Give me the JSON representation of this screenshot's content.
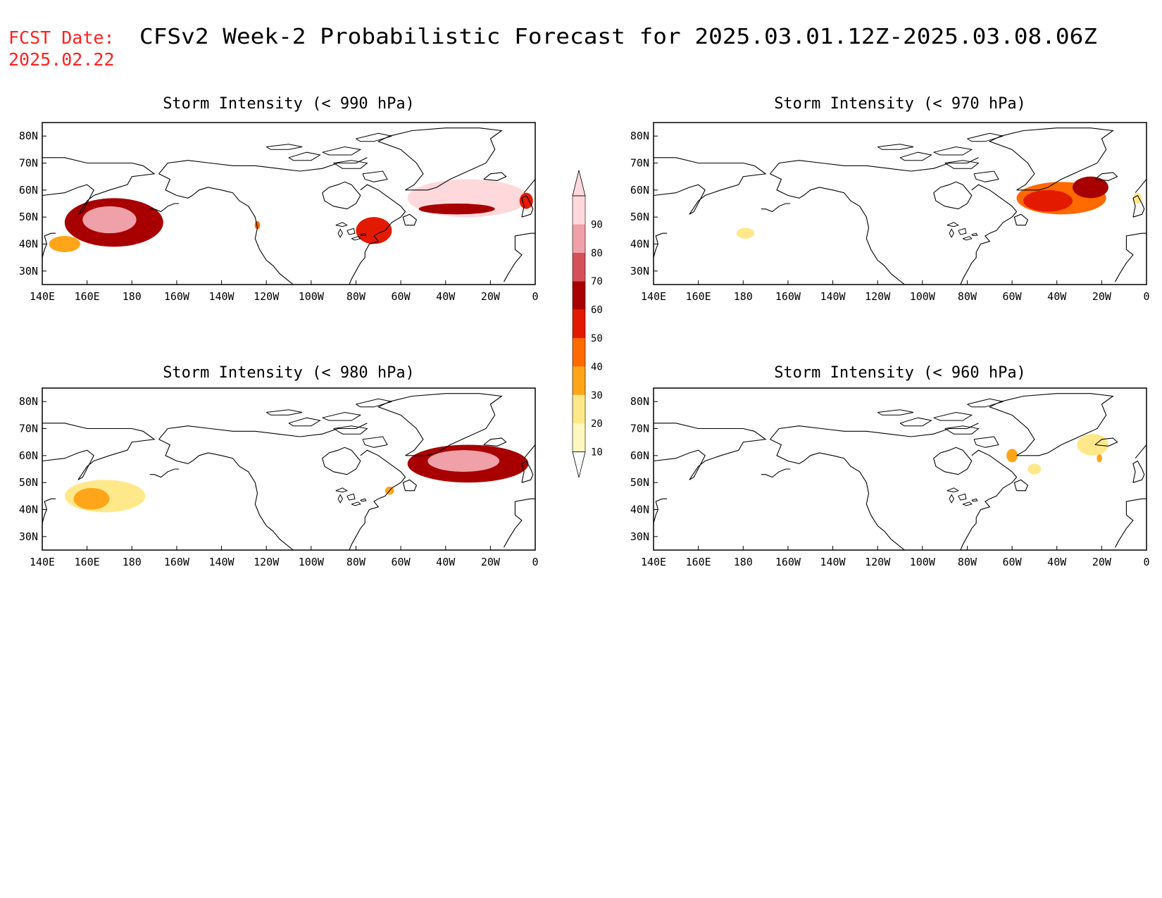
{
  "header": {
    "fcst_label": "FCST Date:",
    "fcst_date": "2025.02.22",
    "title": "CFSv2 Week-2 Probabilistic Forecast for 2025.03.01.12Z-2025.03.08.06Z",
    "date_color": "#ff2020"
  },
  "lon_ticks": [
    "140E",
    "160E",
    "180",
    "160W",
    "140W",
    "120W",
    "100W",
    "80W",
    "60W",
    "40W",
    "20W",
    "0"
  ],
  "lat_ticks": [
    "30N",
    "40N",
    "50N",
    "60N",
    "70N",
    "80N"
  ],
  "colorbar": {
    "levels": [
      "10",
      "20",
      "30",
      "40",
      "50",
      "60",
      "70",
      "80",
      "90"
    ],
    "colors": [
      "#fff7c0",
      "#ffe88a",
      "#ffa51a",
      "#ff6a00",
      "#e41a00",
      "#a80000",
      "#d6505a",
      "#f0a0a8",
      "#ffd8dc"
    ]
  },
  "panels": [
    {
      "title": "Storm Intensity (< 990 hPa)",
      "blobs": [
        {
          "lon": 172,
          "lat": 48,
          "rx": 22,
          "ry": 9,
          "level": 5
        },
        {
          "lon": 170,
          "lat": 49,
          "rx": 12,
          "ry": 5,
          "level": 7
        },
        {
          "lon": 150,
          "lat": 40,
          "rx": 7,
          "ry": 3,
          "level": 2
        },
        {
          "lon": 236,
          "lat": 47,
          "rx": 1.2,
          "ry": 1.5,
          "level": 3
        },
        {
          "lon": 288,
          "lat": 45,
          "rx": 8,
          "ry": 5,
          "level": 4
        },
        {
          "lon": 330,
          "lat": 57,
          "rx": 27,
          "ry": 7,
          "level": 8
        },
        {
          "lon": 325,
          "lat": 53,
          "rx": 17,
          "ry": 2,
          "level": 5
        },
        {
          "lon": 356,
          "lat": 56,
          "rx": 3,
          "ry": 3,
          "level": 4
        }
      ]
    },
    {
      "title": "Storm Intensity (< 970 hPa)",
      "blobs": [
        {
          "lon": 181,
          "lat": 44,
          "rx": 4,
          "ry": 2,
          "level": 1
        },
        {
          "lon": 322,
          "lat": 57,
          "rx": 20,
          "ry": 6,
          "level": 3
        },
        {
          "lon": 316,
          "lat": 56,
          "rx": 11,
          "ry": 4,
          "level": 4
        },
        {
          "lon": 335,
          "lat": 61,
          "rx": 8,
          "ry": 4,
          "level": 5
        },
        {
          "lon": 356,
          "lat": 57,
          "rx": 2,
          "ry": 2,
          "level": 1
        }
      ]
    },
    {
      "title": "Storm Intensity (< 980 hPa)",
      "blobs": [
        {
          "lon": 168,
          "lat": 45,
          "rx": 18,
          "ry": 6,
          "level": 1
        },
        {
          "lon": 162,
          "lat": 44,
          "rx": 8,
          "ry": 4,
          "level": 2
        },
        {
          "lon": 295,
          "lat": 47,
          "rx": 2,
          "ry": 1.5,
          "level": 2
        },
        {
          "lon": 330,
          "lat": 57,
          "rx": 27,
          "ry": 7,
          "level": 5
        },
        {
          "lon": 328,
          "lat": 58,
          "rx": 16,
          "ry": 4,
          "level": 7
        }
      ]
    },
    {
      "title": "Storm Intensity (< 960 hPa)",
      "blobs": [
        {
          "lon": 300,
          "lat": 60,
          "rx": 2.5,
          "ry": 2.5,
          "level": 2
        },
        {
          "lon": 310,
          "lat": 55,
          "rx": 3,
          "ry": 2,
          "level": 1
        },
        {
          "lon": 336,
          "lat": 64,
          "rx": 7,
          "ry": 4,
          "level": 1
        },
        {
          "lon": 339,
          "lat": 59,
          "rx": 1.2,
          "ry": 1.5,
          "level": 2
        }
      ]
    }
  ]
}
